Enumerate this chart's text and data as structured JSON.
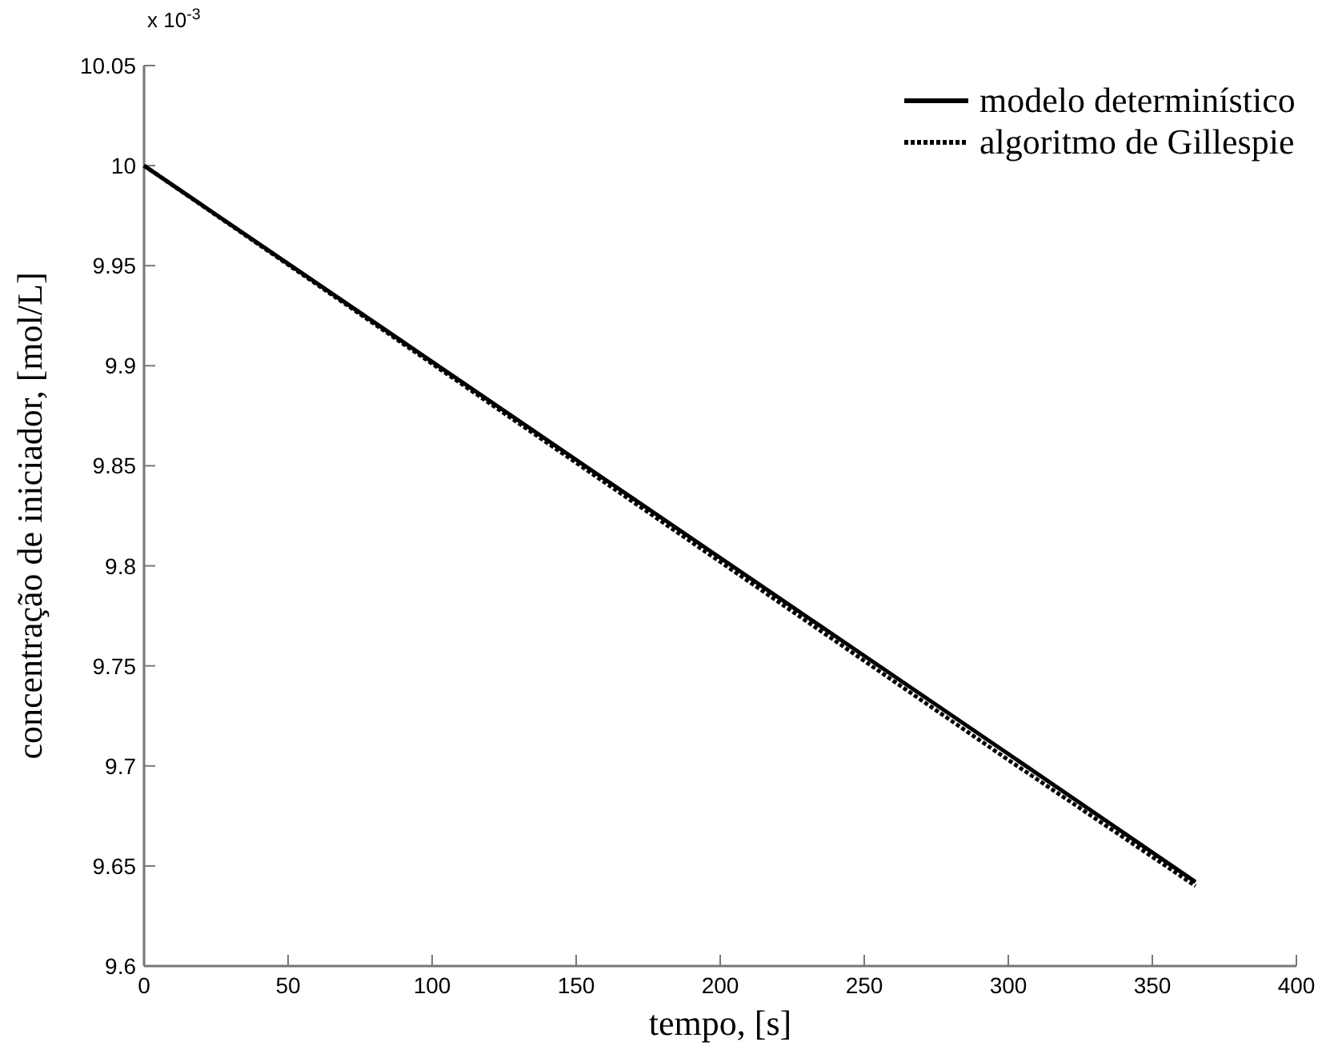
{
  "chart_data": {
    "type": "line",
    "xlabel": "tempo, [s]",
    "ylabel": "concentração de iniciador, [mol/L]",
    "annotations": [
      "x 10$^{-3}$"
    ],
    "xlim": [
      0,
      400
    ],
    "xticks": [
      0,
      50,
      100,
      150,
      200,
      250,
      300,
      350,
      400
    ],
    "ylim": [
      9.6,
      10.05
    ],
    "yticks": [
      9.6,
      9.65,
      9.7,
      9.75,
      9.8,
      9.85,
      9.9,
      9.95,
      10,
      10.05
    ],
    "legend": "top right",
    "grid": false,
    "series": [
      {
        "name": "modelo determinístico",
        "color": "#000000",
        "line_style": "solid",
        "x": [
          0,
          100,
          200,
          300,
          365
        ],
        "values": [
          10.0,
          9.902,
          9.804,
          9.706,
          9.642
        ]
      },
      {
        "name": "algoritmo de Gillespie",
        "color": "#000000",
        "line_style": "dotted",
        "x": [
          0,
          100,
          200,
          300,
          365
        ],
        "values": [
          10.0,
          9.901,
          9.802,
          9.703,
          9.64
        ]
      }
    ]
  }
}
